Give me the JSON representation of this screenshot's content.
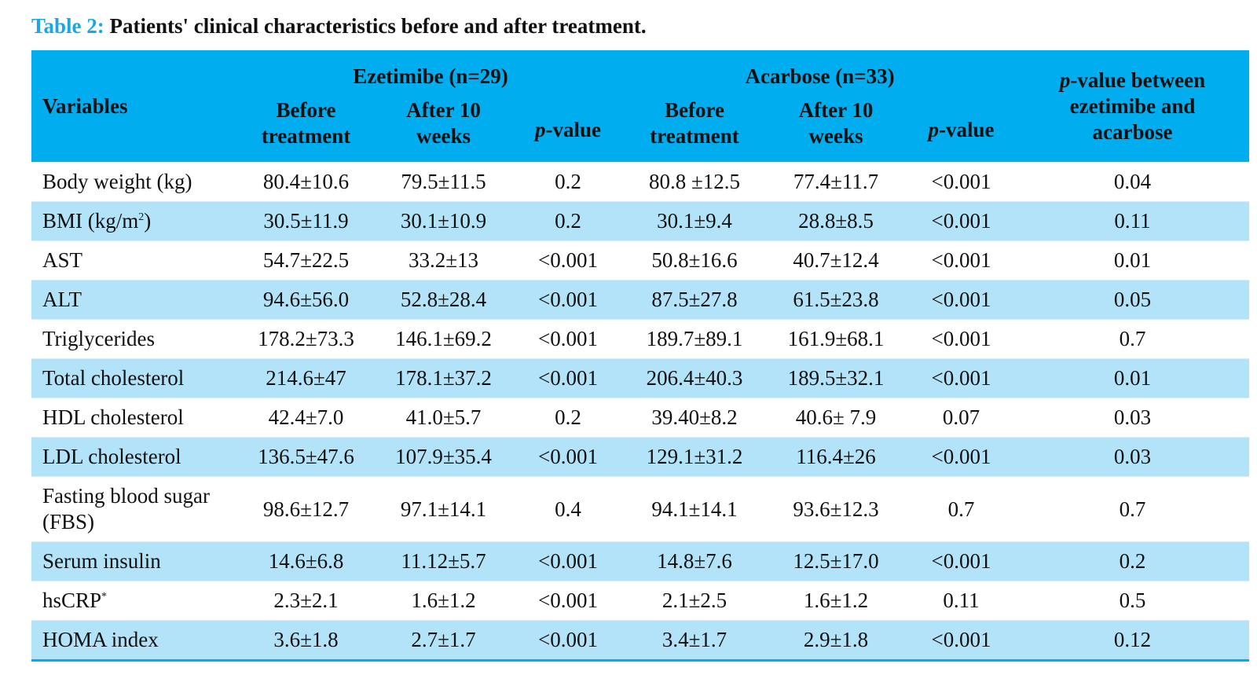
{
  "caption": {
    "label": "Table 2:",
    "text": " Patients' clinical characteristics before and after treatment."
  },
  "header": {
    "variables": "Variables",
    "group1": "Ezetimibe (n=29)",
    "group2": "Acarbose (n=33)",
    "before_line1": "Before",
    "before_line2": "treatment",
    "after_line1": "After 10",
    "after_line2": "weeks",
    "p_italic": "p",
    "p_rest": "-value",
    "between_rest1": "-value  between",
    "between_line2": "ezetimibe and",
    "between_line3": "acarbose"
  },
  "rows": [
    {
      "var": "Body weight (kg)",
      "sup": "",
      "vals": [
        "80.4±10.6",
        "79.5±11.5",
        "0.2",
        "80.8 ±12.5",
        "77.4±11.7",
        "<0.001",
        "0.04"
      ]
    },
    {
      "var": "BMI (kg/m",
      "sup": "2",
      "tail": ")",
      "vals": [
        "30.5±11.9",
        "30.1±10.9",
        "0.2",
        "30.1±9.4",
        "28.8±8.5",
        "<0.001",
        "0.11"
      ]
    },
    {
      "var": "AST",
      "sup": "",
      "vals": [
        "54.7±22.5",
        "33.2±13",
        "<0.001",
        "50.8±16.6",
        "40.7±12.4",
        "<0.001",
        "0.01"
      ]
    },
    {
      "var": "ALT",
      "sup": "",
      "vals": [
        "94.6±56.0",
        "52.8±28.4",
        "<0.001",
        "87.5±27.8",
        "61.5±23.8",
        "<0.001",
        "0.05"
      ]
    },
    {
      "var": "Triglycerides",
      "sup": "",
      "vals": [
        "178.2±73.3",
        "146.1±69.2",
        "<0.001",
        "189.7±89.1",
        "161.9±68.1",
        "<0.001",
        "0.7"
      ]
    },
    {
      "var": "Total cholesterol",
      "sup": "",
      "vals": [
        "214.6±47",
        "178.1±37.2",
        "<0.001",
        "206.4±40.3",
        "189.5±32.1",
        "<0.001",
        "0.01"
      ]
    },
    {
      "var": "HDL cholesterol",
      "sup": "",
      "vals": [
        "42.4±7.0",
        "41.0±5.7",
        "0.2",
        "39.40±8.2",
        "40.6± 7.9",
        "0.07",
        "0.03"
      ]
    },
    {
      "var": "LDL cholesterol",
      "sup": "",
      "vals": [
        "136.5±47.6",
        "107.9±35.4",
        "<0.001",
        "129.1±31.2",
        "116.4±26",
        "<0.001",
        "0.03"
      ]
    },
    {
      "var": "Fasting blood sugar (FBS)",
      "sup": "",
      "vals": [
        "98.6±12.7",
        "97.1±14.1",
        "0.4",
        "94.1±14.1",
        "93.6±12.3",
        "0.7",
        "0.7"
      ]
    },
    {
      "var": "Serum insulin",
      "sup": "",
      "vals": [
        "14.6±6.8",
        "11.12±5.7",
        "<0.001",
        "14.8±7.6",
        "12.5±17.0",
        "<0.001",
        "0.2"
      ]
    },
    {
      "var": "hsCRP",
      "sup": "*",
      "vals": [
        "2.3±2.1",
        "1.6±1.2",
        "<0.001",
        "2.1±2.5",
        "1.6±1.2",
        "0.11",
        "0.5"
      ]
    },
    {
      "var": "HOMA index",
      "sup": "",
      "vals": [
        "3.6±1.8",
        "2.7±1.7",
        "<0.001",
        "3.4±1.7",
        "2.9±1.8",
        "<0.001",
        "0.12"
      ]
    }
  ]
}
